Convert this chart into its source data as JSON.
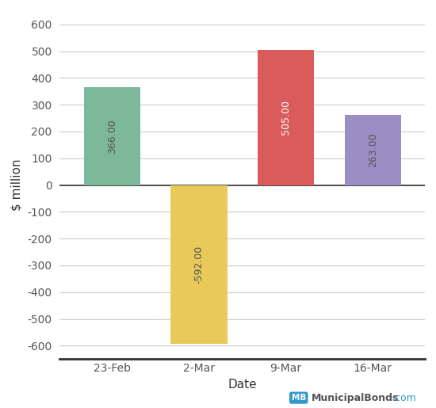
{
  "categories": [
    "23-Feb",
    "2-Mar",
    "9-Mar",
    "16-Mar"
  ],
  "values": [
    366.0,
    -592.0,
    505.0,
    263.0
  ],
  "bar_colors": [
    "#7EB89A",
    "#E8C95A",
    "#D95B5B",
    "#9B8EC4"
  ],
  "xlabel": "Date",
  "ylabel": "$ million",
  "ylim": [
    -650,
    650
  ],
  "yticks": [
    -600,
    -500,
    -400,
    -300,
    -200,
    -100,
    0,
    100,
    200,
    300,
    400,
    500,
    600
  ],
  "label_color_positive": "#555555",
  "label_color_negative": "#555555",
  "label_color_red": "#ffffff",
  "label_fontsize": 9,
  "axis_label_fontsize": 11,
  "tick_fontsize": 10,
  "background_color": "#ffffff",
  "grid_color": "#cccccc",
  "bar_width": 0.65,
  "watermark_main": "MunicipalBonds",
  "watermark_com": ".com",
  "mb_box_color": "#3399CC"
}
